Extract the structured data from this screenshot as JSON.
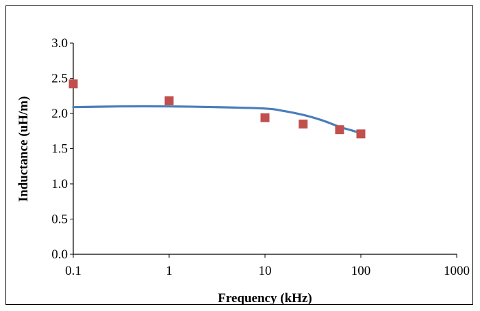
{
  "chart_data": {
    "type": "scatter",
    "title": "",
    "xlabel": "Frequency (kHz)",
    "ylabel": "Inductance (uH/m)",
    "x_scale": "log",
    "xlim": [
      0.1,
      1000
    ],
    "ylim": [
      0.0,
      3.0
    ],
    "x_ticks": [
      "0.1",
      "1",
      "10",
      "100",
      "1000"
    ],
    "y_ticks": [
      "0.0",
      "0.5",
      "1.0",
      "1.5",
      "2.0",
      "2.5",
      "3.0"
    ],
    "grid": false,
    "legend": "none",
    "series": [
      {
        "kind": "line",
        "color": "#4a7ebb",
        "x": [
          0.1,
          0.3,
          1,
          3,
          10,
          15,
          25,
          40,
          60,
          80,
          100
        ],
        "y": [
          2.09,
          2.1,
          2.1,
          2.09,
          2.07,
          2.04,
          1.98,
          1.9,
          1.81,
          1.76,
          1.72
        ]
      },
      {
        "kind": "marker",
        "color": "#c0504d",
        "x": [
          0.1,
          1,
          10,
          25,
          60,
          100
        ],
        "y": [
          2.42,
          2.18,
          1.94,
          1.85,
          1.77,
          1.71
        ]
      }
    ]
  }
}
